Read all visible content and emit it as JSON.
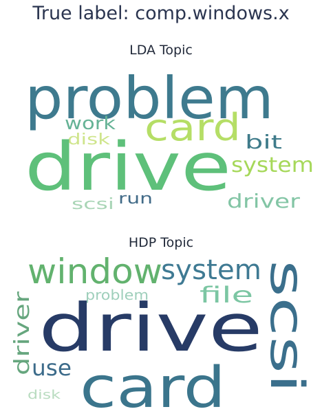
{
  "title": "True label: comp.windows.x",
  "lda": {
    "heading": "LDA Topic",
    "words": [
      {
        "text": "problem",
        "color": "#3e7a8e"
      },
      {
        "text": "card",
        "color": "#b5de66"
      },
      {
        "text": "work",
        "color": "#66b396"
      },
      {
        "text": "disk",
        "color": "#cfe58c"
      },
      {
        "text": "bit",
        "color": "#3f7b8a"
      },
      {
        "text": "drive",
        "color": "#5ec07a"
      },
      {
        "text": "system",
        "color": "#a6d85a"
      },
      {
        "text": "scsi",
        "color": "#a9d5b6"
      },
      {
        "text": "run",
        "color": "#426b88"
      },
      {
        "text": "driver",
        "color": "#83c5a5"
      }
    ]
  },
  "hdp": {
    "heading": "HDP Topic",
    "words": [
      {
        "text": "window",
        "color": "#62b26e"
      },
      {
        "text": "system",
        "color": "#3f7a93"
      },
      {
        "text": "file",
        "color": "#7cc6a3"
      },
      {
        "text": "problem",
        "color": "#9fcfbb"
      },
      {
        "text": "driver",
        "color": "#66a67e"
      },
      {
        "text": "drive",
        "color": "#273b66"
      },
      {
        "text": "use",
        "color": "#3c6b8a"
      },
      {
        "text": "card",
        "color": "#3b758c"
      },
      {
        "text": "disk",
        "color": "#b9dcc0"
      },
      {
        "text": "scsi",
        "color": "#3b6f8c"
      }
    ]
  }
}
